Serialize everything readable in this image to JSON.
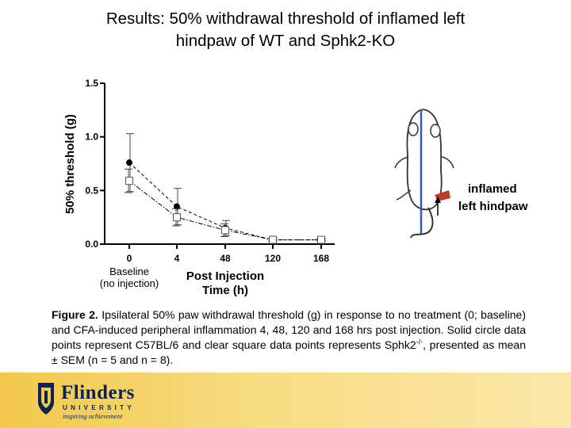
{
  "slide": {
    "title_line1": "Results: 50% withdrawal threshold of inflamed left",
    "title_line2": "hindpaw of WT and Sphk2-KO"
  },
  "chart_data": {
    "type": "line",
    "categories": [
      "0",
      "4",
      "48",
      "120",
      "168"
    ],
    "ylabel": "50% threshold (g)",
    "xlabel_line1": "Post Injection",
    "xlabel_line2": "Time (h)",
    "baseline_label_line1": "Baseline",
    "baseline_label_line2": "(no injection)",
    "ylim": [
      0,
      1.5
    ],
    "yticks": [
      "0.0",
      "0.5",
      "1.0",
      "1.5"
    ],
    "ytick_values": [
      0,
      0.5,
      1.0,
      1.5
    ],
    "grid": false,
    "series": [
      {
        "marker": "circle-filled",
        "line": "dashed",
        "color": "#000000",
        "values": [
          0.76,
          0.35,
          0.15,
          0.04,
          0.04
        ],
        "sem": [
          0.27,
          0.17,
          0.07,
          0.01,
          0.01
        ]
      },
      {
        "marker": "square-open",
        "line": "dash-dot",
        "color": "#000000",
        "values": [
          0.59,
          0.25,
          0.13,
          0.04,
          0.04
        ],
        "sem": [
          0.11,
          0.08,
          0.06,
          0.01,
          0.01
        ]
      }
    ]
  },
  "illustration": {
    "label_line1": "inflamed",
    "label_line2": "left hindpaw",
    "line_color": "#2f5faa",
    "paw_color": "#c0392b"
  },
  "caption": {
    "bold": "Figure 2.",
    "text_part1": " Ipsilateral 50% paw withdrawal threshold (g) in response to no treatment (0; baseline) and CFA-induced peripheral inflammation 4, 48, 120 and 168 hrs post injection. Solid circle data points represent C57BL/6 and clear square data points represents Sphk2",
    "superscript": "-/-",
    "text_part2": ", presented as mean ± SEM (n = 5 and n = 8)."
  },
  "footer": {
    "logo_name": "Flinders",
    "logo_sub": "UNIVERSITY",
    "logo_tag": "inspiring achievement",
    "background": "#f2c84b",
    "brand_color": "#0b2350"
  }
}
